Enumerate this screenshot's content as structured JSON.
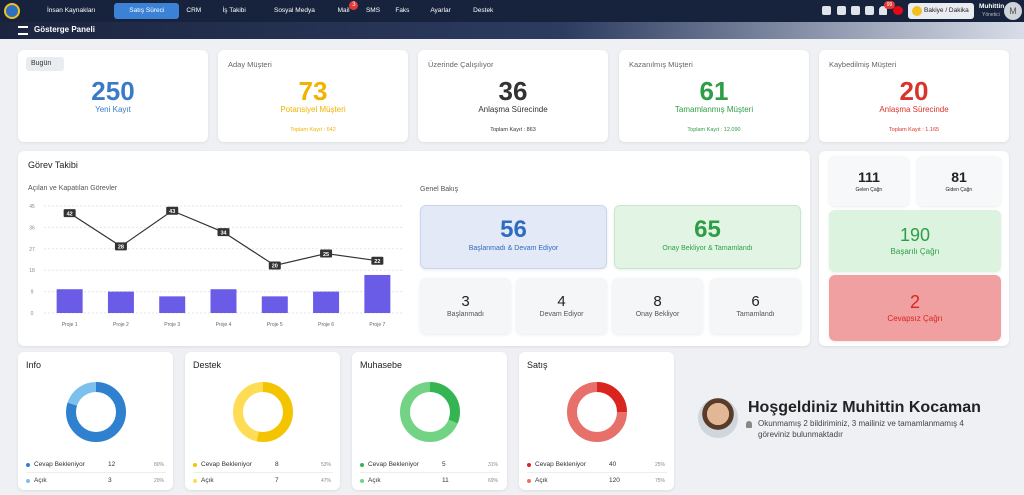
{
  "nav": {
    "items": [
      "İnsan Kaynakları",
      "Satış Süreci",
      "CRM",
      "İş Takibi",
      "Sosyal Medya",
      "Mail",
      "SMS",
      "Faks",
      "Ayarlar",
      "Destek"
    ],
    "active": 1,
    "mail_badge": "3",
    "notification_badge": "99",
    "balance_button": "Bakiye / Dakika",
    "user_name": "Muhittin",
    "user_role": "Yönetici",
    "avatar_letter": "M"
  },
  "header": {
    "title": "Gösterge Paneli"
  },
  "stats": [
    {
      "title": "Bugün",
      "value": 250,
      "label": "Yeni Kayıt",
      "color": "#3a7bc8"
    },
    {
      "title": "Aday Müşteri",
      "value": 73,
      "label": "Potansiyel Müşteri",
      "total": "Toplam Kayıt : 642",
      "color": "#f0b400"
    },
    {
      "title": "Üzerinde Çalışılıyor",
      "value": 36,
      "label": "Anlaşma Sürecinde",
      "total": "Toplam Kayıt : 863",
      "color": "#333333"
    },
    {
      "title": "Kazanılmış Müşteri",
      "value": 61,
      "label": "Tamamlanmış Müşteri",
      "total": "Toplam Kayıt : 12.090",
      "color": "#2e9e46"
    },
    {
      "title": "Kaybedilmiş Müşteri",
      "value": 20,
      "label": "Anlaşma Sürecinde",
      "total": "Toplam Kayıt : 1.165",
      "color": "#d9342b"
    }
  ],
  "tasks": {
    "title": "Görev Takibi",
    "chart": {
      "type": "bar",
      "title": "Açılan ve Kapatılan Görevler",
      "categories": [
        "Proje 1",
        "Proje 2",
        "Proje 3",
        "Proje 4",
        "Proje 5",
        "Proje 6",
        "Proje 7"
      ],
      "line": [
        42,
        28,
        43,
        34,
        20,
        25,
        22
      ],
      "bars": [
        10,
        9,
        7,
        10,
        7,
        9,
        16
      ],
      "bar_color": "#6b5ce7",
      "line_color": "#333333",
      "ylim": [
        0,
        45
      ],
      "yticks": [
        0,
        9,
        18,
        27,
        36,
        45
      ]
    },
    "overview": {
      "title": "Genel Bakış",
      "summary": [
        {
          "value": 56,
          "label": "Başlanmadı & Devam Ediyor"
        },
        {
          "value": 65,
          "label": "Onay Bekliyor & Tamamlandı"
        }
      ],
      "details": [
        {
          "value": 3,
          "label": "Başlanmadı"
        },
        {
          "value": 4,
          "label": "Devam Ediyor"
        },
        {
          "value": 8,
          "label": "Onay Bekliyor"
        },
        {
          "value": 6,
          "label": "Tamamlandı"
        }
      ]
    }
  },
  "calls": [
    {
      "value": 111,
      "label": "Gelen Çağrı"
    },
    {
      "value": 81,
      "label": "Giden Çağrı"
    },
    {
      "value": 190,
      "label": "Başarılı Çağrı"
    },
    {
      "value": 2,
      "label": "Cevapsız Çağrı"
    }
  ],
  "support": [
    {
      "title": "Info",
      "colors": [
        "#2f80cf",
        "#7cc0ee"
      ],
      "rows": [
        {
          "label": "Cevap Bekleniyor",
          "value": 12,
          "percent": "80%"
        },
        {
          "label": "Açık",
          "value": 3,
          "percent": "20%"
        }
      ]
    },
    {
      "title": "Destek",
      "colors": [
        "#f5c400",
        "#ffdc55"
      ],
      "rows": [
        {
          "label": "Cevap Bekleniyor",
          "value": 8,
          "percent": "53%"
        },
        {
          "label": "Açık",
          "value": 7,
          "percent": "47%"
        }
      ]
    },
    {
      "title": "Muhasebe",
      "colors": [
        "#35b552",
        "#72d385"
      ],
      "rows": [
        {
          "label": "Cevap Bekleniyor",
          "value": 5,
          "percent": "31%"
        },
        {
          "label": "Açık",
          "value": 11,
          "percent": "69%"
        }
      ]
    },
    {
      "title": "Satış",
      "colors": [
        "#d9251d",
        "#e8706a"
      ],
      "rows": [
        {
          "label": "Cevap Bekleniyor",
          "value": 40,
          "percent": "25%"
        },
        {
          "label": "Açık",
          "value": 120,
          "percent": "75%"
        }
      ]
    }
  ],
  "welcome": {
    "title": "Hoşgeldiniz Muhittin Kocaman",
    "message": "Okunmamış 2 bildiriminiz, 3 mailiniz ve tamamlanmamış 4 göreviniz bulunmaktadır"
  }
}
